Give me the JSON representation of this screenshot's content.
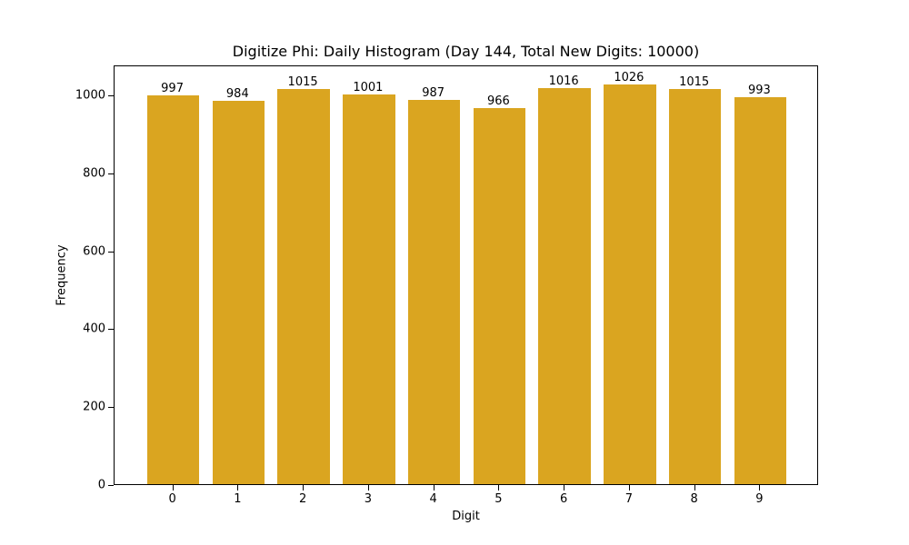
{
  "chart_data": {
    "type": "bar",
    "title": "Digitize Phi: Daily Histogram (Day 144, Total New Digits: 10000)",
    "xlabel": "Digit",
    "ylabel": "Frequency",
    "categories": [
      "0",
      "1",
      "2",
      "3",
      "4",
      "5",
      "6",
      "7",
      "8",
      "9"
    ],
    "values": [
      997,
      984,
      1015,
      1001,
      987,
      966,
      1016,
      1026,
      1015,
      993
    ],
    "data_labels": [
      "997",
      "984",
      "1015",
      "1001",
      "987",
      "966",
      "1016",
      "1026",
      "1015",
      "993"
    ],
    "yticks": [
      0,
      200,
      400,
      600,
      800,
      1000
    ],
    "ylim": [
      0,
      1077
    ],
    "xlim": [
      -0.9,
      9.9
    ],
    "grid": false,
    "legend": null,
    "bar_color": "#DAA520"
  }
}
